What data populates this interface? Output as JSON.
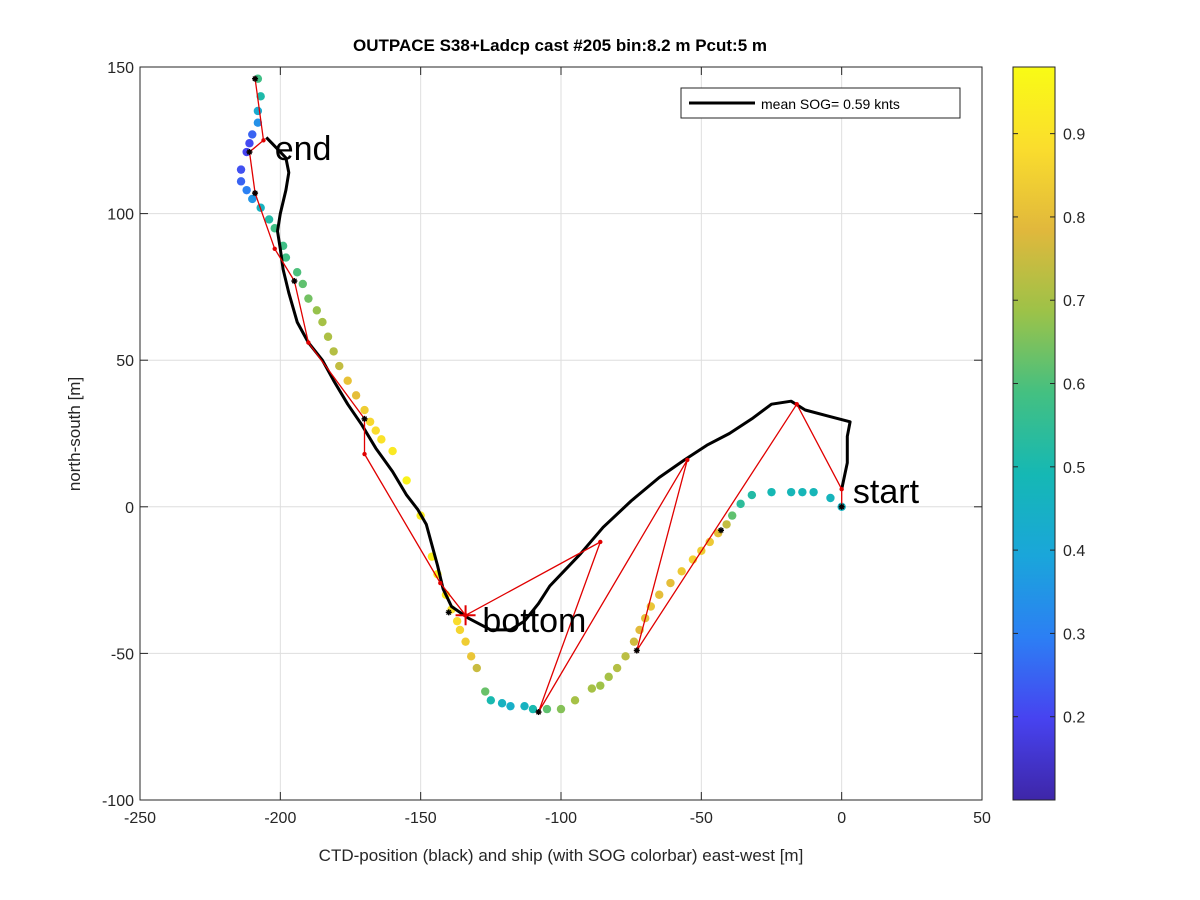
{
  "chart_data": {
    "type": "scatter",
    "title": "OUTPACE S38+Ladcp cast #205 bin:8.2 m  Pcut:5 m",
    "xlabel": "CTD-position (black) and ship (with SOG colorbar) east-west [m]",
    "ylabel": "north-south [m]",
    "xlim": [
      -250,
      50
    ],
    "ylim": [
      -100,
      150
    ],
    "xticks": [
      -250,
      -200,
      -150,
      -100,
      -50,
      0,
      50
    ],
    "yticks": [
      -100,
      -50,
      0,
      50,
      100,
      150
    ],
    "grid": true,
    "legend": {
      "placement": "top-right",
      "entries": [
        {
          "label": "mean SOG=  0.59 knts",
          "color": "#000000"
        }
      ]
    },
    "annotations": [
      {
        "text": "start",
        "x": 4,
        "y": 5
      },
      {
        "text": "end",
        "x": -202,
        "y": 122
      },
      {
        "text": "bottom",
        "x": -128,
        "y": -39
      }
    ],
    "colorbar": {
      "min": 0.1,
      "max": 0.98,
      "ticks": [
        0.2,
        0.3,
        0.4,
        0.5,
        0.6,
        0.7,
        0.8,
        0.9
      ],
      "colormap": [
        "#3e26a8",
        "#4743f0",
        "#2c7ff4",
        "#1aa6da",
        "#15b8b4",
        "#44c081",
        "#9dc248",
        "#e1b83c",
        "#fadd2d",
        "#f9fb15"
      ]
    },
    "series": [
      {
        "style": "line",
        "color": "#000000",
        "points": [
          [
            0,
            6
          ],
          [
            2,
            15
          ],
          [
            2,
            24
          ],
          [
            3,
            29
          ],
          [
            -5,
            31
          ],
          [
            -13,
            33
          ],
          [
            -18,
            36
          ],
          [
            -25,
            35
          ],
          [
            -32,
            30
          ],
          [
            -40,
            25
          ],
          [
            -48,
            21
          ],
          [
            -56,
            16
          ],
          [
            -65,
            10
          ],
          [
            -75,
            2
          ],
          [
            -85,
            -7
          ],
          [
            -93,
            -16
          ],
          [
            -99,
            -22
          ],
          [
            -104,
            -27
          ],
          [
            -108,
            -33
          ],
          [
            -113,
            -39
          ],
          [
            -118,
            -42
          ],
          [
            -125,
            -42
          ],
          [
            -133,
            -38
          ],
          [
            -139,
            -34
          ],
          [
            -142,
            -28
          ],
          [
            -144,
            -20
          ],
          [
            -146,
            -13
          ],
          [
            -148,
            -6
          ],
          [
            -151,
            -1
          ],
          [
            -155,
            4
          ],
          [
            -160,
            12
          ],
          [
            -166,
            20
          ],
          [
            -171,
            28
          ],
          [
            -176,
            35
          ],
          [
            -181,
            43
          ],
          [
            -185,
            50
          ],
          [
            -190,
            56
          ],
          [
            -194,
            63
          ],
          [
            -197,
            73
          ],
          [
            -199,
            81
          ],
          [
            -200,
            88
          ],
          [
            -201,
            94
          ],
          [
            -200,
            100
          ],
          [
            -198,
            108
          ],
          [
            -197,
            114
          ],
          [
            -198,
            119
          ],
          [
            -203,
            124
          ],
          [
            -205,
            126
          ]
        ]
      },
      {
        "style": "line",
        "color": "#e00000",
        "points": [
          [
            0,
            0
          ],
          [
            0,
            6
          ],
          [
            -16,
            35
          ],
          [
            -73,
            -49
          ],
          [
            -55,
            16
          ],
          [
            -108,
            -70
          ],
          [
            -86,
            -12
          ],
          [
            -134,
            -37
          ],
          [
            -143,
            -26
          ],
          [
            -170,
            18
          ],
          [
            -170,
            30
          ],
          [
            -190,
            56
          ],
          [
            -195,
            77
          ],
          [
            -202,
            88
          ],
          [
            -209,
            107
          ],
          [
            -211,
            121
          ],
          [
            -206,
            125
          ],
          [
            -209,
            146
          ]
        ]
      },
      {
        "style": "points",
        "color": "#000000",
        "points": [
          [
            0,
            0
          ],
          [
            -43,
            -8
          ],
          [
            -73,
            -49
          ],
          [
            -108,
            -70
          ],
          [
            -140,
            -36
          ],
          [
            -170,
            30
          ],
          [
            -195,
            77
          ],
          [
            -209,
            107
          ],
          [
            -211,
            121
          ],
          [
            -209,
            146
          ]
        ]
      },
      {
        "style": "scatter",
        "points": [
          [
            0,
            0,
            0.46
          ],
          [
            -4,
            3,
            0.47
          ],
          [
            -10,
            5,
            0.48
          ],
          [
            -14,
            5,
            0.48
          ],
          [
            -18,
            5,
            0.48
          ],
          [
            -25,
            5,
            0.49
          ],
          [
            -32,
            4,
            0.52
          ],
          [
            -36,
            1,
            0.54
          ],
          [
            -39,
            -3,
            0.62
          ],
          [
            -41,
            -6,
            0.74
          ],
          [
            -44,
            -9,
            0.8
          ],
          [
            -47,
            -12,
            0.83
          ],
          [
            -50,
            -15,
            0.84
          ],
          [
            -53,
            -18,
            0.85
          ],
          [
            -57,
            -22,
            0.83
          ],
          [
            -61,
            -26,
            0.8
          ],
          [
            -65,
            -30,
            0.8
          ],
          [
            -68,
            -34,
            0.82
          ],
          [
            -70,
            -38,
            0.8
          ],
          [
            -72,
            -42,
            0.79
          ],
          [
            -74,
            -46,
            0.76
          ],
          [
            -77,
            -51,
            0.73
          ],
          [
            -80,
            -55,
            0.72
          ],
          [
            -83,
            -58,
            0.7
          ],
          [
            -86,
            -61,
            0.69
          ],
          [
            -89,
            -62,
            0.7
          ],
          [
            -95,
            -66,
            0.7
          ],
          [
            -100,
            -69,
            0.66
          ],
          [
            -105,
            -69,
            0.62
          ],
          [
            -110,
            -69,
            0.5
          ],
          [
            -113,
            -68,
            0.46
          ],
          [
            -118,
            -68,
            0.44
          ],
          [
            -121,
            -67,
            0.46
          ],
          [
            -125,
            -66,
            0.5
          ],
          [
            -127,
            -63,
            0.63
          ],
          [
            -130,
            -55,
            0.75
          ],
          [
            -132,
            -51,
            0.82
          ],
          [
            -134,
            -46,
            0.84
          ],
          [
            -136,
            -42,
            0.86
          ],
          [
            -137,
            -39,
            0.88
          ],
          [
            -139,
            -35,
            0.9
          ],
          [
            -141,
            -30,
            0.93
          ],
          [
            -144,
            -23,
            0.96
          ],
          [
            -146,
            -17,
            0.94
          ],
          [
            -150,
            -3,
            0.93
          ],
          [
            -155,
            9,
            0.95
          ],
          [
            -160,
            19,
            0.92
          ],
          [
            -164,
            23,
            0.9
          ],
          [
            -166,
            26,
            0.88
          ],
          [
            -168,
            29,
            0.87
          ],
          [
            -170,
            33,
            0.84
          ],
          [
            -173,
            38,
            0.8
          ],
          [
            -176,
            43,
            0.81
          ],
          [
            -179,
            48,
            0.74
          ],
          [
            -181,
            53,
            0.72
          ],
          [
            -183,
            58,
            0.71
          ],
          [
            -185,
            63,
            0.7
          ],
          [
            -187,
            67,
            0.68
          ],
          [
            -190,
            71,
            0.64
          ],
          [
            -192,
            76,
            0.62
          ],
          [
            -194,
            80,
            0.6
          ],
          [
            -198,
            85,
            0.58
          ],
          [
            -199,
            89,
            0.58
          ],
          [
            -202,
            95,
            0.58
          ],
          [
            -204,
            98,
            0.52
          ],
          [
            -207,
            102,
            0.46
          ],
          [
            -210,
            105,
            0.35
          ],
          [
            -212,
            108,
            0.3
          ],
          [
            -214,
            111,
            0.25
          ],
          [
            -214,
            115,
            0.22
          ],
          [
            -212,
            121,
            0.2
          ],
          [
            -211,
            124,
            0.21
          ],
          [
            -210,
            127,
            0.25
          ],
          [
            -208,
            131,
            0.34
          ],
          [
            -208,
            135,
            0.42
          ],
          [
            -207,
            140,
            0.51
          ],
          [
            -208,
            146,
            0.58
          ]
        ]
      }
    ]
  }
}
